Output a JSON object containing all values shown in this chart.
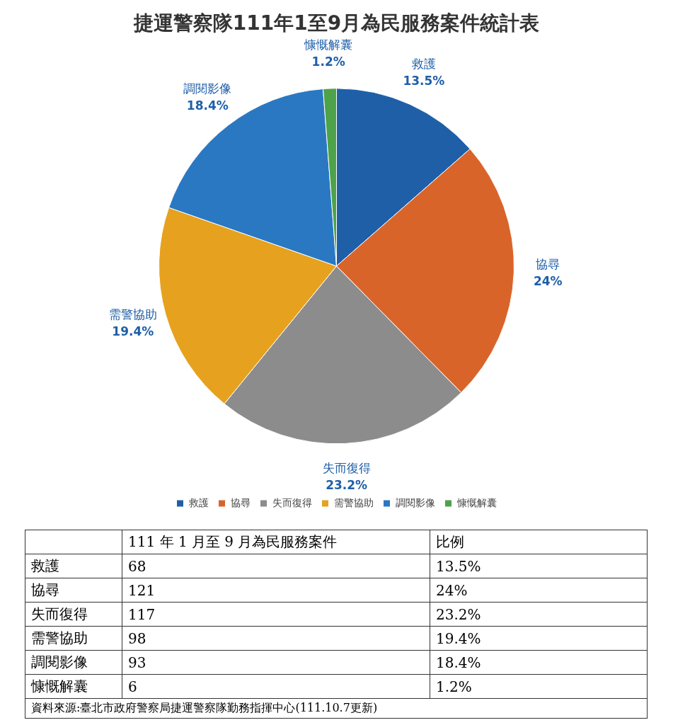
{
  "chart_data": [
    {
      "type": "pie",
      "title": "捷運警察隊111年1至9月為民服務案件統計表",
      "categories": [
        "救護",
        "協尋",
        "失而復得",
        "需警協助",
        "調閱影像",
        "慷慨解囊"
      ],
      "values": [
        13.5,
        24,
        23.2,
        19.4,
        18.4,
        1.2
      ],
      "value_labels": [
        "13.5%",
        "24%",
        "23.2%",
        "19.4%",
        "18.4%",
        "1.2%"
      ],
      "colors": [
        "#1f5fa8",
        "#d9642a",
        "#8c8c8c",
        "#e6a21e",
        "#2a78c2",
        "#4ea24a"
      ],
      "data_labels": true,
      "legend": "bottom"
    },
    {
      "type": "other",
      "categories": [
        "救護",
        "協尋",
        "失而復得",
        "需警協助",
        "調閱影像",
        "慷慨解囊"
      ],
      "series": [
        {
          "name": "111 年 1 月至 9 月為民服務案件",
          "values": [
            68,
            121,
            117,
            98,
            93,
            6
          ]
        },
        {
          "name": "比例",
          "values": [
            13.5,
            24,
            23.2,
            19.4,
            18.4,
            1.2
          ],
          "value_labels": [
            "13.5%",
            "24%",
            "23.2%",
            "19.4%",
            "18.4%",
            "1.2%"
          ]
        }
      ],
      "data_labels": true,
      "annotations": [
        "資料來源:臺北市政府警察局捷運警察隊勤務指揮中心(111.10.7更新)"
      ]
    }
  ]
}
